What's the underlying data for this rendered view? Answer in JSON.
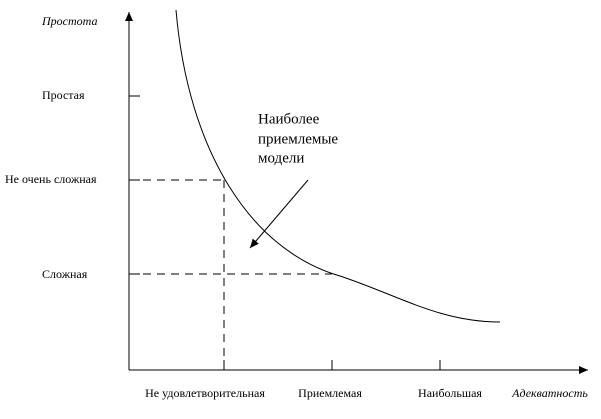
{
  "y_axis": {
    "title": "Простота",
    "labels": [
      "Простая",
      "Не очень сложная",
      "Сложная"
    ]
  },
  "x_axis": {
    "title": "Адекватность",
    "labels": [
      "Не удовлетворительная",
      "Приемлемая",
      "Наибольшая"
    ]
  },
  "annotation": {
    "lines": [
      "Наиболее",
      "приемлемые",
      "модели"
    ]
  }
}
